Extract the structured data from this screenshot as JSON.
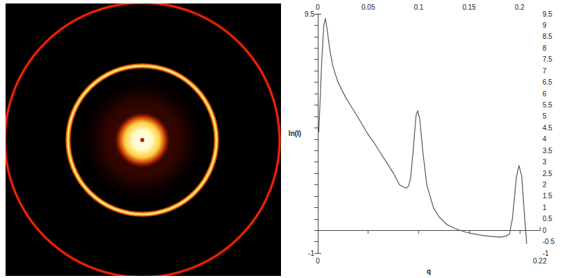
{
  "chart_data": {
    "type": "line",
    "xlabel": "q",
    "ylabel": "ln(I)",
    "x": [
      0.001,
      0.004,
      0.006,
      0.0075,
      0.009,
      0.012,
      0.015,
      0.02,
      0.028,
      0.035,
      0.042,
      0.05,
      0.055,
      0.062,
      0.068,
      0.075,
      0.081,
      0.085,
      0.088,
      0.09,
      0.092,
      0.0947,
      0.0974,
      0.099,
      0.101,
      0.104,
      0.108,
      0.1146,
      0.12,
      0.128,
      0.135,
      0.141,
      0.148,
      0.154,
      0.16,
      0.1675,
      0.175,
      0.181,
      0.187,
      0.19,
      0.193,
      0.1967,
      0.1993,
      0.202,
      0.205,
      0.207
    ],
    "values": [
      4.3,
      7.5,
      9.0,
      9.3,
      8.9,
      7.9,
      7.2,
      6.5,
      5.8,
      5.3,
      4.8,
      4.2,
      3.9,
      3.4,
      3.0,
      2.5,
      2.0,
      1.9,
      1.85,
      1.95,
      2.3,
      3.6,
      5.05,
      5.25,
      4.9,
      3.5,
      2.0,
      1.0,
      0.6,
      0.25,
      0.1,
      0.0,
      -0.1,
      -0.15,
      -0.2,
      -0.25,
      -0.28,
      -0.3,
      -0.25,
      -0.15,
      0.55,
      2.3,
      2.85,
      2.4,
      0.55,
      -0.6
    ],
    "color": "#555555",
    "xlim": [
      0,
      0.22
    ],
    "ylim": [
      -1,
      9.5
    ],
    "xticks": [
      0,
      0.05,
      0.1,
      0.15,
      0.2
    ],
    "yticks": [
      -1,
      -0.5,
      0,
      0.5,
      1,
      1.5,
      2,
      2.5,
      3,
      3.5,
      4,
      4.5,
      5,
      5.5,
      6,
      6.5,
      7,
      7.5,
      8,
      8.5,
      9,
      9.5
    ],
    "grid": false
  }
}
